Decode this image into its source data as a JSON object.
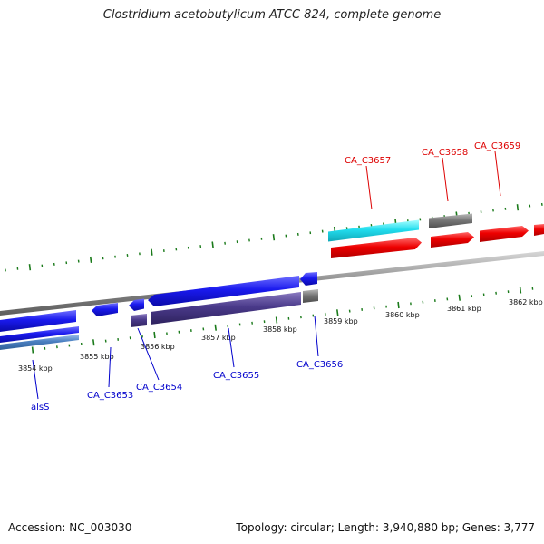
{
  "title": "Clostridium acetobutylicum ATCC 824, complete genome",
  "footer": {
    "accession": "Accession: NC_003030",
    "summary": "Topology: circular; Length: 3,940,880 bp; Genes: 3,777"
  },
  "colors": {
    "forward_gene": "#ee0000",
    "forward_cyan": "#22ddee",
    "reverse_gene": "#1a1aee",
    "reverse_purple": "#4a3a8a",
    "pseudo_gray": "#777777",
    "steelblue": "#4a7fc0",
    "tick": "#1a7a1a",
    "backbone": "#8a8a8a",
    "forward_label": "#dd0000",
    "reverse_label": "#0000cc"
  },
  "kbp_labels": [
    "3854 kbp",
    "3855 kbp",
    "3856 kbp",
    "3857 kbp",
    "3858 kbp",
    "3859 kbp",
    "3860 kbp",
    "3861 kbp",
    "3862 kbp"
  ],
  "forward_labels": [
    "CA_C3657",
    "CA_C3658",
    "CA_C3659"
  ],
  "reverse_labels": [
    "alsS",
    "CA_C3653",
    "CA_C3654",
    "CA_C3655",
    "CA_C3656"
  ]
}
